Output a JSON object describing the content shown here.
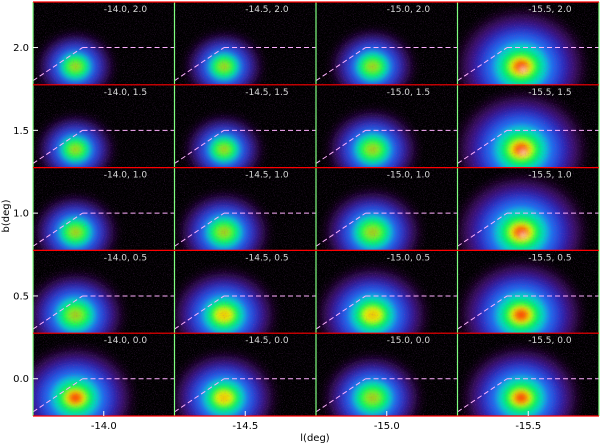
{
  "chart_data": {
    "type": "heatmap",
    "title": "",
    "xlabel": "l(deg)",
    "ylabel": "b(deg)",
    "x_ticks": [
      "-14.0",
      "-14.5",
      "-15.0",
      "-15.5"
    ],
    "y_ticks": [
      "2.0",
      "1.5",
      "1.0",
      "0.5",
      "0.0"
    ],
    "columns": [
      -14.0,
      -14.5,
      -15.0,
      -15.5
    ],
    "rows": [
      2.0,
      1.5,
      1.0,
      0.5,
      0.0
    ],
    "panel_labels": [
      [
        "-14.0, 2.0",
        "-14.5, 2.0",
        "-15.0, 2.0",
        "-15.5, 2.0"
      ],
      [
        "-14.0, 1.5",
        "-14.5, 1.5",
        "-15.0, 1.5",
        "-15.5, 1.5"
      ],
      [
        "-14.0, 1.0",
        "-14.5, 1.0",
        "-15.0, 1.0",
        "-15.5, 1.0"
      ],
      [
        "-14.0, 0.5",
        "-14.5, 0.5",
        "-15.0, 0.5",
        "-15.5, 0.5"
      ],
      [
        "-14.0, 0.0",
        "-14.5, 0.0",
        "-15.0, 0.0",
        "-15.5, 0.0"
      ]
    ],
    "panel_intensity": [
      [
        0.55,
        0.55,
        0.6,
        0.95
      ],
      [
        0.55,
        0.55,
        0.65,
        0.95
      ],
      [
        0.6,
        0.65,
        0.7,
        0.95
      ],
      [
        0.7,
        0.75,
        0.8,
        0.9
      ],
      [
        0.85,
        0.75,
        0.7,
        0.85
      ]
    ],
    "colorscale": [
      "#000000",
      "#4a0a6a",
      "#2a2ad0",
      "#1a8cff",
      "#00e0c0",
      "#00ff40",
      "#ffff00",
      "#ff4000",
      "#ffffff"
    ],
    "grid": false,
    "frame_colors": {
      "vertical": "#80ff80",
      "horizontal": "#ff0000"
    },
    "guide_color": "#ffb0ff"
  }
}
